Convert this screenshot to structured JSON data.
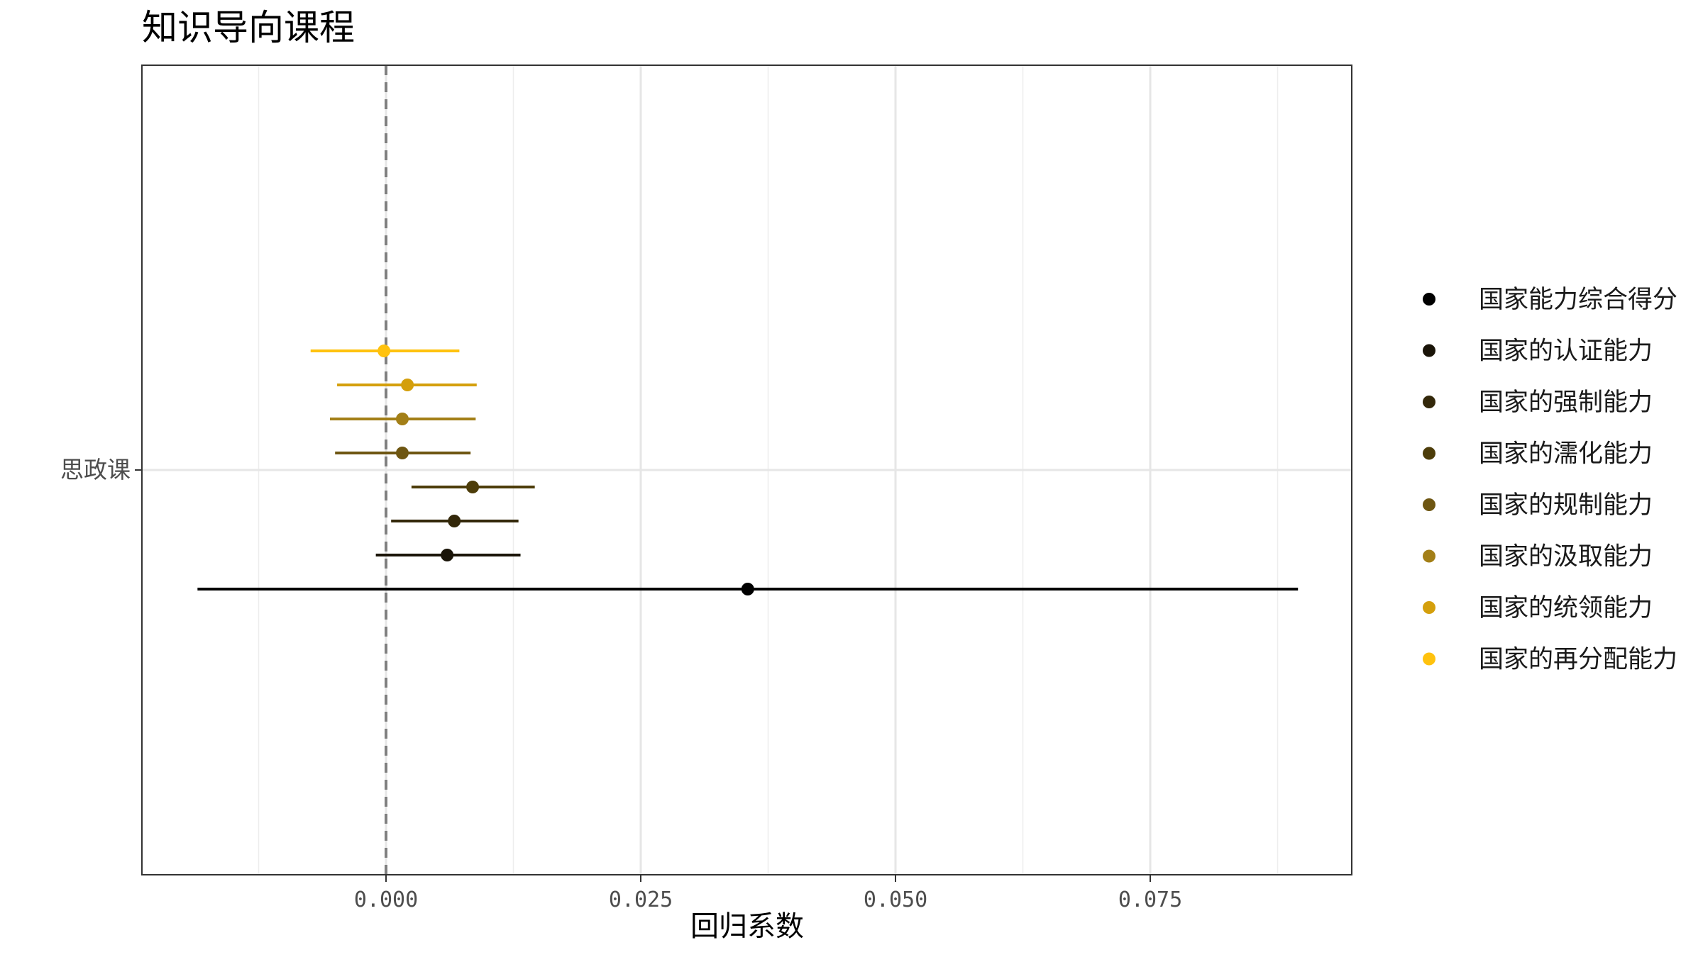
{
  "chart_data": {
    "type": "scatter",
    "subtype": "coefficient-plot",
    "title": "知识导向课程",
    "xlabel": "回归系数",
    "ylabel": "",
    "xlim": [
      -0.024,
      0.095
    ],
    "x_ticks": [
      0.0,
      0.025,
      0.05,
      0.075
    ],
    "x_tick_labels": [
      "0.000",
      "0.025",
      "0.050",
      "0.075"
    ],
    "categories": [
      "思政课"
    ],
    "reference_line": {
      "x": 0,
      "style": "dashed",
      "color": "#808080"
    },
    "grid": true,
    "legend_position": "right",
    "series": [
      {
        "name": "国家能力综合得分",
        "color": "#000000",
        "estimate": 0.0355,
        "ci_low": -0.0185,
        "ci_high": 0.0895
      },
      {
        "name": "国家的认证能力",
        "color": "#1a1408",
        "estimate": 0.006,
        "ci_low": -0.001,
        "ci_high": 0.0132
      },
      {
        "name": "国家的强制能力",
        "color": "#33280a",
        "estimate": 0.0067,
        "ci_low": 0.0005,
        "ci_high": 0.013
      },
      {
        "name": "国家的濡化能力",
        "color": "#4d3d0a",
        "estimate": 0.0085,
        "ci_low": 0.0025,
        "ci_high": 0.0146
      },
      {
        "name": "国家的规制能力",
        "color": "#6e5612",
        "estimate": 0.0016,
        "ci_low": -0.005,
        "ci_high": 0.0083
      },
      {
        "name": "国家的汲取能力",
        "color": "#a37f17",
        "estimate": 0.0016,
        "ci_low": -0.0055,
        "ci_high": 0.0088
      },
      {
        "name": "国家的统领能力",
        "color": "#d49f0c",
        "estimate": 0.0021,
        "ci_low": -0.0048,
        "ci_high": 0.0089
      },
      {
        "name": "国家的再分配能力",
        "color": "#ffc20e",
        "estimate": -0.0002,
        "ci_low": -0.0074,
        "ci_high": 0.0072
      }
    ]
  }
}
